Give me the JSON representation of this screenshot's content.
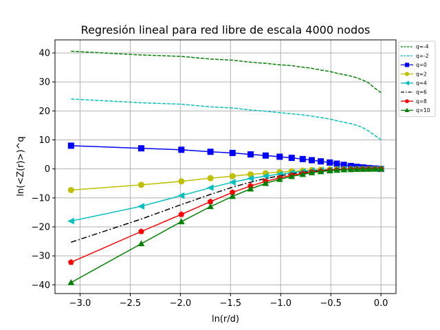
{
  "chart_data": {
    "type": "line",
    "title": "Regresión lineal para red libre de escala 4000 nodos",
    "xlabel": "ln(r/d)",
    "ylabel": "ln(<Z(r)>)^q",
    "xlim": [
      -3.25,
      0.15
    ],
    "ylim": [
      -43,
      44.5
    ],
    "xticks": [
      -3.0,
      -2.5,
      -2.0,
      -1.5,
      -1.0,
      -0.5,
      0.0
    ],
    "xtick_labels": [
      "−3.0",
      "−2.5",
      "−2.0",
      "−1.5",
      "−1.0",
      "−0.5",
      "0.0"
    ],
    "yticks": [
      -40,
      -30,
      -20,
      -10,
      0,
      10,
      20,
      30,
      40
    ],
    "ytick_labels": [
      "−40",
      "−30",
      "−20",
      "−10",
      "0",
      "10",
      "20",
      "30",
      "40"
    ],
    "grid": true,
    "legend_position": "top-right",
    "x": [
      -3.09,
      -2.39,
      -1.99,
      -1.7,
      -1.48,
      -1.3,
      -1.15,
      -1.01,
      -0.89,
      -0.78,
      -0.69,
      -0.6,
      -0.51,
      -0.44,
      -0.37,
      -0.3,
      -0.24,
      -0.18,
      -0.12,
      -0.06,
      0.0
    ],
    "series": [
      {
        "name": "q=-4",
        "color": "#008000",
        "dash": "dashed",
        "marker": "none",
        "values": [
          40.6,
          39.3,
          38.8,
          37.9,
          37.5,
          36.8,
          36.4,
          35.9,
          35.6,
          35.1,
          34.7,
          34.1,
          33.6,
          33.0,
          32.5,
          32.0,
          31.4,
          30.6,
          29.6,
          27.8,
          26.3
        ]
      },
      {
        "name": "q=-2",
        "color": "#00bfbf",
        "dash": "dashed",
        "marker": "none",
        "values": [
          24.1,
          22.8,
          22.3,
          21.4,
          21.0,
          20.3,
          19.9,
          19.4,
          19.0,
          18.6,
          18.2,
          17.7,
          17.2,
          16.6,
          16.1,
          15.6,
          15.0,
          14.2,
          13.0,
          11.5,
          10.1
        ]
      },
      {
        "name": "q=0",
        "color": "#0000ff",
        "dash": "solid",
        "marker": "square",
        "values": [
          8.0,
          7.1,
          6.6,
          5.9,
          5.5,
          5.0,
          4.6,
          4.2,
          3.8,
          3.4,
          3.0,
          2.6,
          2.2,
          1.8,
          1.4,
          1.0,
          0.7,
          0.5,
          0.3,
          0.15,
          0.0
        ]
      },
      {
        "name": "q=2",
        "color": "#bfbf00",
        "dash": "solid",
        "marker": "circle",
        "values": [
          -7.3,
          -5.5,
          -4.3,
          -3.2,
          -2.5,
          -1.9,
          -1.5,
          -1.1,
          -0.8,
          -0.6,
          -0.4,
          -0.3,
          -0.2,
          -0.15,
          -0.1,
          -0.08,
          -0.05,
          -0.03,
          -0.02,
          -0.01,
          0.0
        ]
      },
      {
        "name": "q=4",
        "color": "#00bfbf",
        "dash": "solid",
        "marker": "triangle-left",
        "values": [
          -18.0,
          -12.9,
          -9.2,
          -6.5,
          -4.6,
          -3.3,
          -2.5,
          -1.8,
          -1.3,
          -0.9,
          -0.6,
          -0.45,
          -0.3,
          -0.2,
          -0.15,
          -0.1,
          -0.07,
          -0.05,
          -0.03,
          -0.01,
          0.0
        ]
      },
      {
        "name": "q=6",
        "color": "#000000",
        "dash": "dashdot",
        "marker": "none",
        "values": [
          -25.3,
          -17.3,
          -12.3,
          -8.8,
          -6.3,
          -4.6,
          -3.3,
          -2.4,
          -1.7,
          -1.2,
          -0.85,
          -0.6,
          -0.4,
          -0.3,
          -0.2,
          -0.13,
          -0.08,
          -0.05,
          -0.03,
          -0.01,
          0.0
        ]
      },
      {
        "name": "q=8",
        "color": "#ff0000",
        "dash": "solid",
        "marker": "pentagon",
        "values": [
          -32.2,
          -21.6,
          -15.7,
          -11.3,
          -8.1,
          -5.9,
          -4.3,
          -3.1,
          -2.2,
          -1.6,
          -1.1,
          -0.8,
          -0.55,
          -0.4,
          -0.27,
          -0.18,
          -0.11,
          -0.07,
          -0.04,
          -0.02,
          0.0
        ]
      },
      {
        "name": "q=10",
        "color": "#008000",
        "dash": "solid",
        "marker": "triangle-up",
        "values": [
          -39.2,
          -25.8,
          -18.2,
          -13.0,
          -9.5,
          -6.9,
          -5.0,
          -3.6,
          -2.6,
          -1.9,
          -1.3,
          -0.95,
          -0.65,
          -0.45,
          -0.3,
          -0.2,
          -0.13,
          -0.08,
          -0.05,
          -0.02,
          0.0
        ]
      }
    ]
  }
}
